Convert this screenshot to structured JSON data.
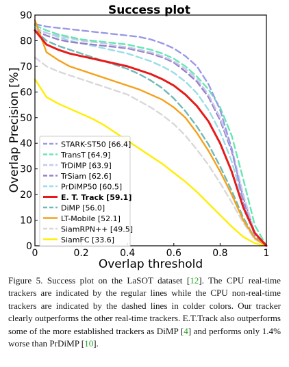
{
  "chart_data": {
    "type": "line",
    "title": "Success plot",
    "xlabel": "Overlap threshold",
    "ylabel": "Overlap Precision [%]",
    "xlim": [
      0,
      1
    ],
    "ylim": [
      0,
      90
    ],
    "xticks": [
      "0",
      "0.2",
      "0.4",
      "0.6",
      "0.8",
      "1"
    ],
    "yticks": [
      "0",
      "10",
      "20",
      "30",
      "40",
      "50",
      "60",
      "70",
      "80",
      "90"
    ],
    "grid": false,
    "legend_position": "lower-left",
    "x": [
      0,
      0.05,
      0.1,
      0.15,
      0.2,
      0.25,
      0.3,
      0.35,
      0.4,
      0.45,
      0.5,
      0.55,
      0.6,
      0.65,
      0.7,
      0.75,
      0.8,
      0.85,
      0.9,
      0.95,
      1.0
    ],
    "series": [
      {
        "name": "STARK-ST50 [66.4]",
        "color": "#9999e6",
        "dashed": true,
        "values": [
          86.5,
          85.5,
          85,
          84.5,
          84,
          83.5,
          83,
          82.5,
          82,
          81.5,
          80.5,
          79,
          77,
          74,
          70,
          63,
          53,
          38,
          17,
          4,
          0
        ]
      },
      {
        "name": "TransT [64.9]",
        "color": "#66e6b3",
        "dashed": true,
        "values": [
          86,
          84,
          82.5,
          81.5,
          80.5,
          80,
          79.5,
          79,
          78.5,
          77.5,
          76.5,
          75,
          73,
          70,
          66,
          61,
          54,
          43,
          26,
          8,
          0
        ]
      },
      {
        "name": "TrDiMP [63.9]",
        "color": "#c8c8ec",
        "dashed": true,
        "values": [
          84.5,
          83,
          82,
          81,
          80,
          79.5,
          79,
          78,
          77.5,
          76.5,
          75.5,
          74,
          72,
          69,
          65,
          59,
          50,
          38,
          20,
          5,
          0
        ]
      },
      {
        "name": "TrSiam [62.6]",
        "color": "#9a7ec8",
        "dashed": true,
        "values": [
          84,
          82,
          80.5,
          79.5,
          79,
          78.5,
          78,
          77.5,
          77,
          76,
          75,
          73.5,
          71.5,
          68,
          64,
          58,
          49,
          37,
          19,
          5,
          0
        ]
      },
      {
        "name": "PrDiMP50 [60.5]",
        "color": "#99dde6",
        "dashed": true,
        "values": [
          85,
          83,
          81.5,
          80,
          79,
          78,
          77,
          76,
          75,
          73.5,
          72,
          70,
          67.5,
          64,
          59.5,
          53,
          44.5,
          33,
          17,
          5,
          0
        ]
      },
      {
        "name": "E. T. Track [59.1]",
        "color": "#e61a1a",
        "dashed": false,
        "bold": true,
        "values": [
          84,
          78.5,
          76.5,
          75,
          74,
          73,
          72,
          71,
          70,
          68.5,
          67,
          65,
          62.5,
          59,
          54.5,
          48.5,
          40,
          29,
          15,
          5,
          0
        ]
      },
      {
        "name": "DiMP [56.0]",
        "color": "#70b8b8",
        "dashed": true,
        "values": [
          84,
          80,
          78,
          76.5,
          75,
          73.5,
          72,
          70.5,
          69,
          67,
          64.5,
          61.5,
          57.5,
          52.5,
          46.5,
          39.5,
          31,
          21.5,
          11,
          3,
          0
        ]
      },
      {
        "name": "LT-Mobile [52.1]",
        "color": "#f5a01a",
        "dashed": false,
        "values": [
          88,
          75.5,
          72.5,
          70,
          68.5,
          67,
          65.5,
          64,
          62.5,
          61,
          59,
          57,
          54,
          50,
          44,
          37,
          29,
          20,
          10,
          3,
          0
        ]
      },
      {
        "name": "SiamRPN++ [49.5]",
        "color": "#d8d8d8",
        "dashed": true,
        "values": [
          73.5,
          70,
          68,
          66.5,
          65,
          63.5,
          62,
          60.5,
          59,
          56.5,
          54,
          51,
          47.5,
          43,
          37.5,
          31.5,
          24.5,
          17,
          9,
          2.5,
          0
        ]
      },
      {
        "name": "SiamFC [33.6]",
        "color": "#ffee00",
        "dashed": false,
        "values": [
          65,
          58,
          55.5,
          53.5,
          51.5,
          49.5,
          47,
          44,
          41,
          38,
          35,
          32,
          28.5,
          25,
          21,
          16.5,
          12,
          7.5,
          3.5,
          1,
          0
        ]
      }
    ]
  },
  "caption": {
    "prefix": "Figure 5. Success plot on the LaSOT dataset [",
    "ref_lasot": "12",
    "part2": "]. The CPU real-time trackers are indicated by the regular lines while the CPU non-real-time trackers are indicated by the dashed lines in colder colors. Our tracker clearly outperforms the other real-time trackers. E.T.Track also outperforms some of the more established trackers as DiMP [",
    "ref_dimp": "4",
    "part3": "] and performs only 1.4% worse than PrDiMP [",
    "ref_prdimp": "10",
    "part4": "]."
  }
}
